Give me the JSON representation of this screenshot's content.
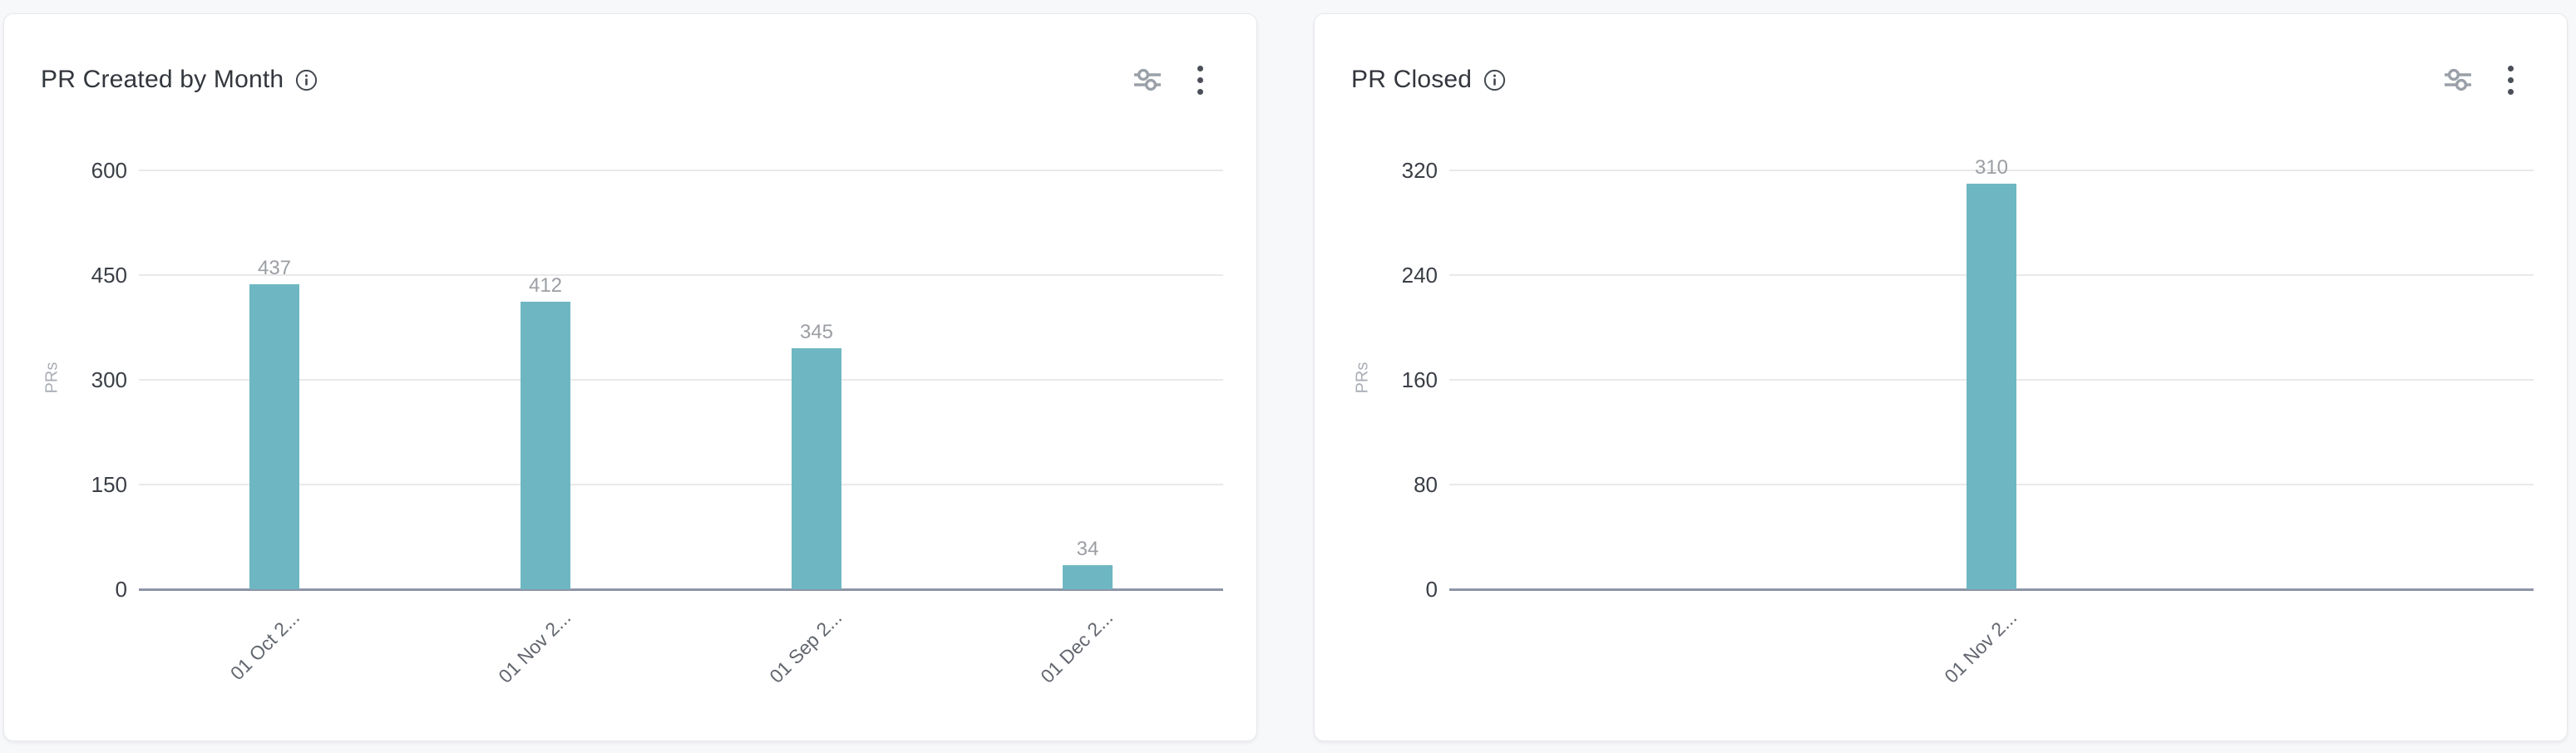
{
  "page": {
    "background": "#f7f8fa"
  },
  "colors": {
    "bar": "#6eb7c2",
    "gridline": "#e9e9e9",
    "axis_line": "#8d95a7",
    "title_text": "#33363d",
    "ytick_text": "#3a3e45",
    "xtick_text": "#62666e",
    "value_label_text": "#9b9ea3",
    "axis_title_text": "#a9adb5",
    "card_background": "#ffffff",
    "page_background": "#f7f8fa"
  },
  "cards": [
    {
      "title": "PR Created by Month",
      "info_icon": "info-icon",
      "controls": [
        "sliders-icon",
        "kebab-menu-icon"
      ]
    },
    {
      "title": "PR Closed",
      "info_icon": "info-icon",
      "controls": [
        "sliders-icon",
        "kebab-menu-icon"
      ]
    }
  ],
  "chart_data": [
    {
      "type": "bar",
      "title": "PR Created by Month",
      "xlabel": "",
      "ylabel": "PRs",
      "categories": [
        "01 Oct 2...",
        "01 Nov 2...",
        "01 Sep 2...",
        "01 Dec 2..."
      ],
      "values": [
        437,
        412,
        345,
        34
      ],
      "value_labels": [
        "437",
        "412",
        "345",
        "34"
      ],
      "yticks": [
        0,
        150,
        300,
        450,
        600
      ],
      "ylim": [
        0,
        600
      ],
      "grid": "on",
      "legend": "none"
    },
    {
      "type": "bar",
      "title": "PR Closed",
      "xlabel": "",
      "ylabel": "PRs",
      "categories": [
        "01 Nov 2..."
      ],
      "values": [
        310
      ],
      "value_labels": [
        "310"
      ],
      "yticks": [
        0,
        80,
        160,
        240,
        320
      ],
      "ylim": [
        0,
        320
      ],
      "grid": "on",
      "legend": "none"
    }
  ]
}
